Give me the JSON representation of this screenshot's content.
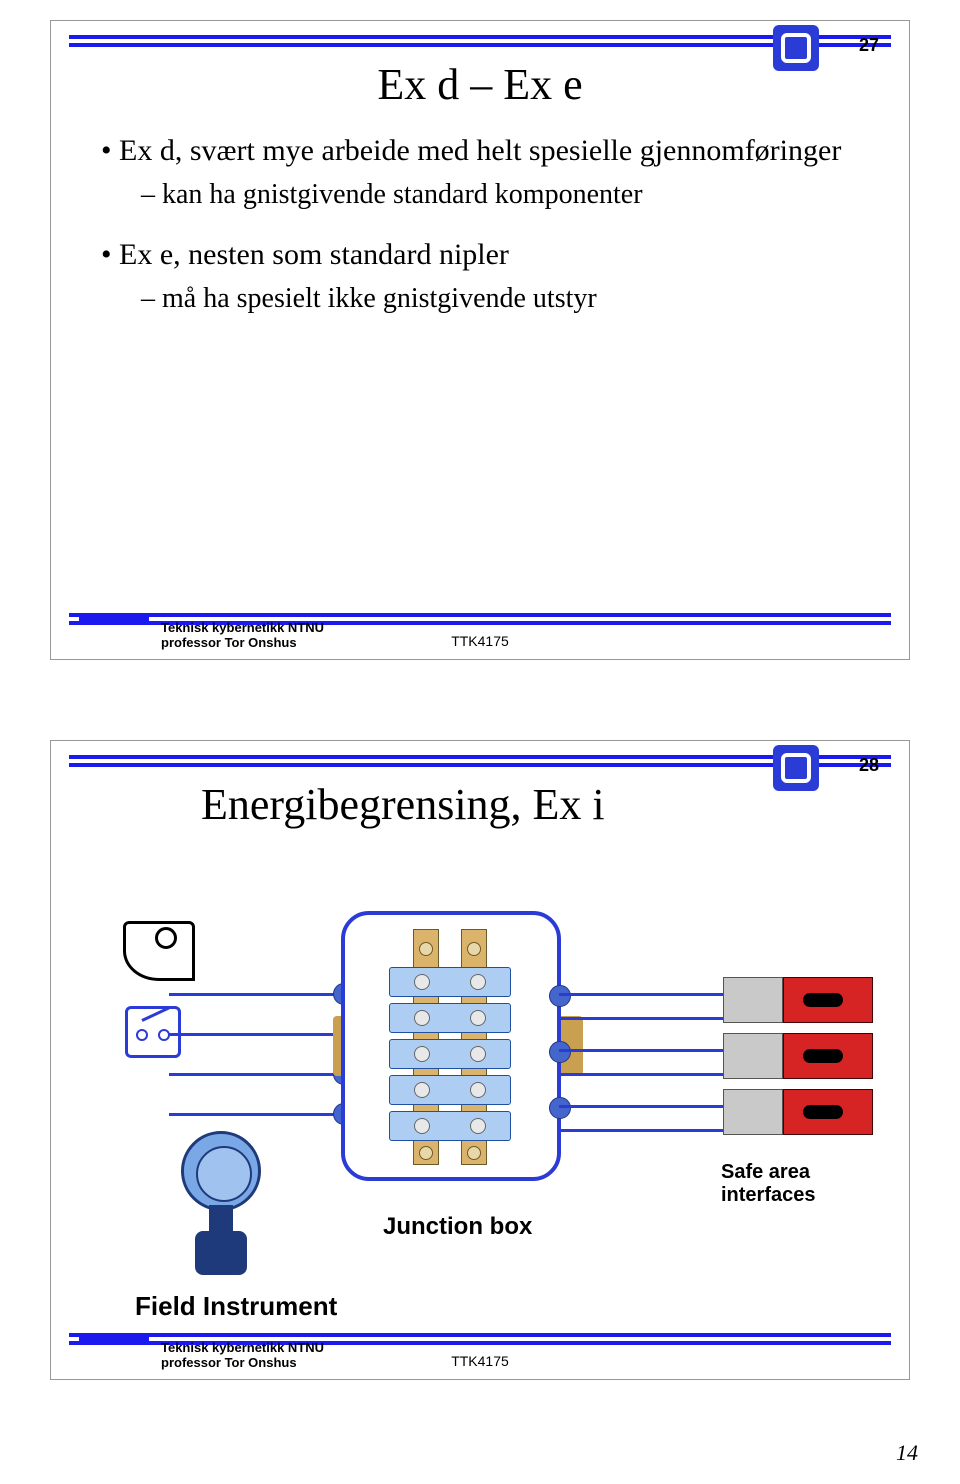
{
  "page_number": "14",
  "colors": {
    "accent_blue": "#1a1aee",
    "logo_blue": "#2a3bd6",
    "rail_tan": "#dcb36b",
    "terminal_blue": "#aecdf3",
    "interface_red": "#d62424",
    "interface_grey": "#c9c9c9",
    "tx_light": "#7aa8e6",
    "tx_dark": "#1e3a7a"
  },
  "footer": {
    "line1": "Teknisk kybernetikk NTNU",
    "line2": "professor Tor Onshus",
    "code": "TTK4175"
  },
  "slide1": {
    "number": "27",
    "title": "Ex d – Ex e",
    "bullets": [
      {
        "level": 1,
        "text": "Ex d, svært mye arbeide med helt spesielle gjennomføringer"
      },
      {
        "level": 2,
        "text": "kan ha gnistgivende standard komponenter"
      },
      {
        "level": 1,
        "text": "Ex e, nesten som standard nipler"
      },
      {
        "level": 2,
        "text": "må ha spesielt ikke gnistgivende utstyr"
      }
    ]
  },
  "slide2": {
    "number": "28",
    "title": "Energibegrensing, Ex i",
    "diagram": {
      "type": "diagram",
      "labels": {
        "safe_area": "Safe area\ninterfaces",
        "junction_box": "Junction box",
        "field_instrument": "Field Instrument"
      },
      "terminal_rows": 5,
      "rail_screws": [
        12,
        216
      ],
      "interfaces": 3
    }
  }
}
